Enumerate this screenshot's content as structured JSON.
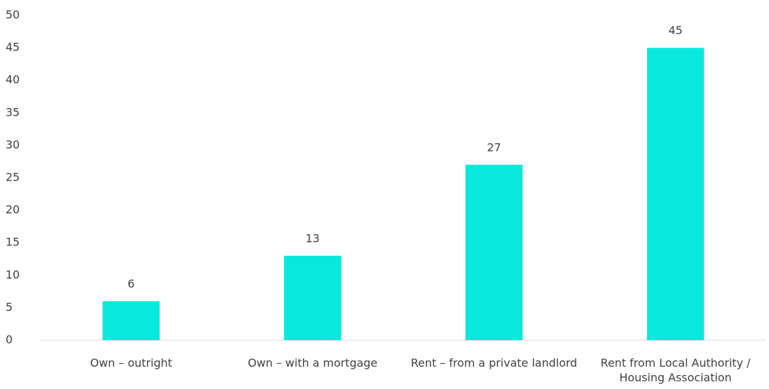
{
  "chart_data": {
    "type": "bar",
    "categories": [
      "Own – outright",
      "Own – with a mortgage",
      "Rent – from a private landlord",
      "Rent from Local Authority / Housing Association"
    ],
    "values": [
      6,
      13,
      27,
      45
    ],
    "color": "#0ae8dc",
    "ylim": [
      0,
      50
    ],
    "yticks": [
      0,
      5,
      10,
      15,
      20,
      25,
      30,
      35,
      40,
      45,
      50
    ],
    "grid": false
  }
}
